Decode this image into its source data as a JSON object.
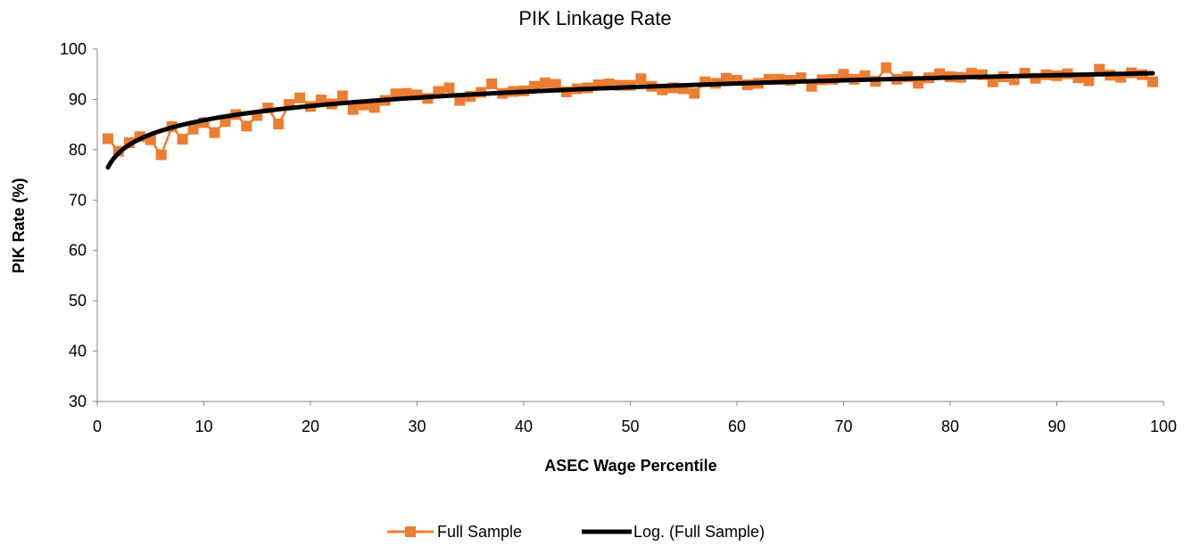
{
  "colors": {
    "series": "#ED7D31",
    "trend": "#000000",
    "axis": "#868686"
  },
  "chart_data": {
    "type": "line",
    "title": "PIK Linkage Rate",
    "xlabel": "ASEC Wage Percentile",
    "ylabel": "PIK Rate (%)",
    "xlim": [
      0,
      100
    ],
    "ylim": [
      30,
      100
    ],
    "x_ticks": [
      0,
      10,
      20,
      30,
      40,
      50,
      60,
      70,
      80,
      90,
      100
    ],
    "y_ticks": [
      30,
      40,
      50,
      60,
      70,
      80,
      90,
      100
    ],
    "grid": false,
    "legend_position": "bottom",
    "series": [
      {
        "name": "Full Sample",
        "marker": "square",
        "x": [
          1,
          2,
          3,
          4,
          5,
          6,
          7,
          8,
          9,
          10,
          11,
          12,
          13,
          14,
          15,
          16,
          17,
          18,
          19,
          20,
          21,
          22,
          23,
          24,
          25,
          26,
          27,
          28,
          29,
          30,
          31,
          32,
          33,
          34,
          35,
          36,
          37,
          38,
          39,
          40,
          41,
          42,
          43,
          44,
          45,
          46,
          47,
          48,
          49,
          50,
          51,
          52,
          53,
          54,
          55,
          56,
          57,
          58,
          59,
          60,
          61,
          62,
          63,
          64,
          65,
          66,
          67,
          68,
          69,
          70,
          71,
          72,
          73,
          74,
          75,
          76,
          77,
          78,
          79,
          80,
          81,
          82,
          83,
          84,
          85,
          86,
          87,
          88,
          89,
          90,
          91,
          92,
          93,
          94,
          95,
          96,
          97,
          98,
          99
        ],
        "y": [
          82.2,
          79.7,
          81.4,
          82.6,
          82.0,
          79.0,
          84.6,
          82.1,
          84.1,
          85.4,
          83.4,
          85.6,
          87.0,
          84.7,
          86.8,
          88.3,
          85.1,
          89.0,
          90.3,
          88.6,
          89.9,
          89.1,
          90.7,
          88.0,
          88.9,
          88.4,
          89.8,
          91.1,
          91.2,
          90.9,
          90.2,
          91.6,
          92.3,
          89.8,
          90.6,
          91.4,
          93.1,
          91.2,
          91.6,
          91.7,
          92.6,
          93.3,
          93.0,
          91.5,
          92.1,
          92.3,
          92.9,
          93.1,
          92.8,
          92.8,
          94.1,
          92.6,
          91.9,
          92.3,
          92.1,
          91.2,
          93.5,
          93.2,
          94.2,
          93.8,
          92.9,
          93.2,
          94.0,
          94.0,
          93.8,
          94.3,
          92.6,
          93.9,
          94.0,
          95.0,
          94.0,
          94.7,
          93.6,
          96.3,
          94.0,
          94.5,
          93.2,
          94.3,
          95.1,
          94.5,
          94.4,
          95.2,
          94.9,
          93.5,
          94.5,
          93.9,
          95.2,
          94.2,
          94.9,
          94.7,
          95.1,
          94.3,
          93.7,
          96.0,
          94.8,
          94.4,
          95.3,
          94.9,
          93.5
        ]
      },
      {
        "name": "Log. (Full Sample)",
        "type": "trendline-logarithmic",
        "a": 76.5,
        "b": 4.07
      }
    ]
  }
}
